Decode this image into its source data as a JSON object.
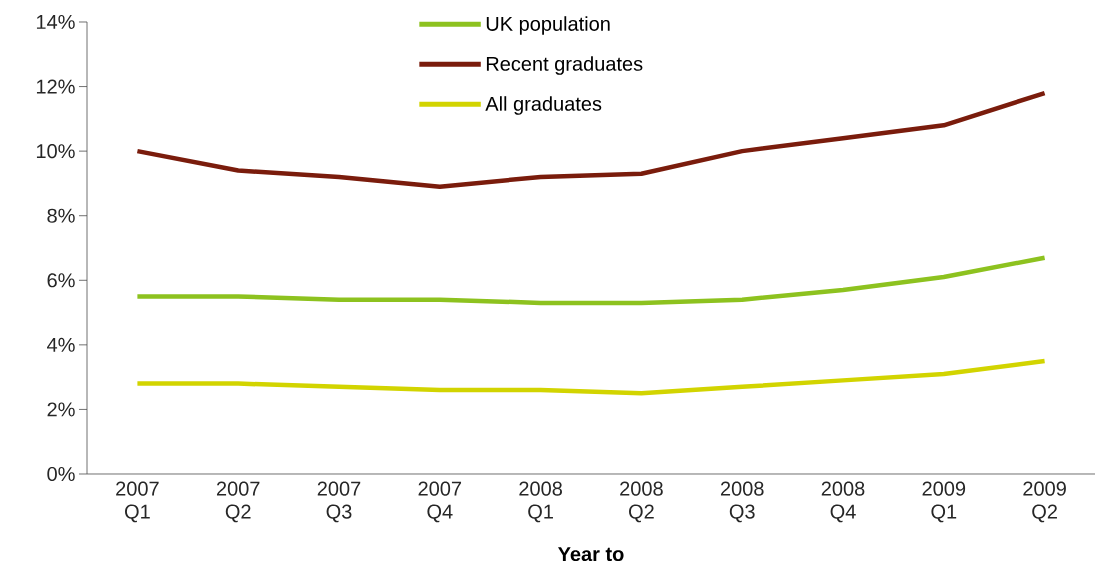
{
  "chart_data": {
    "type": "line",
    "xlabel": "Year to",
    "categories": [
      "2007 Q1",
      "2007 Q2",
      "2007 Q3",
      "2007 Q4",
      "2008 Q1",
      "2008 Q2",
      "2008 Q3",
      "2008 Q4",
      "2009 Q1",
      "2009 Q2"
    ],
    "series": [
      {
        "name": "UK population",
        "color": "#8dc21f",
        "values": [
          5.5,
          5.5,
          5.4,
          5.4,
          5.3,
          5.3,
          5.4,
          5.7,
          6.1,
          6.7
        ]
      },
      {
        "name": "Recent graduates",
        "color": "#7a1c0c",
        "values": [
          10.0,
          9.4,
          9.2,
          8.9,
          9.2,
          9.3,
          10.0,
          10.4,
          10.8,
          11.8
        ]
      },
      {
        "name": "All graduates",
        "color": "#d2d400",
        "values": [
          2.8,
          2.8,
          2.7,
          2.6,
          2.6,
          2.5,
          2.7,
          2.9,
          3.1,
          3.5
        ]
      }
    ],
    "ylim": [
      0,
      14
    ],
    "yticks": [
      {
        "value": 0,
        "label": "0%"
      },
      {
        "value": 2,
        "label": "2%"
      },
      {
        "value": 4,
        "label": "4%"
      },
      {
        "value": 6,
        "label": "6%"
      },
      {
        "value": 8,
        "label": "8%"
      },
      {
        "value": 10,
        "label": "10%"
      },
      {
        "value": 12,
        "label": "12%"
      },
      {
        "value": 14,
        "label": "14%"
      }
    ],
    "legend": "top",
    "grid": false,
    "marker": "none",
    "line_style": "solid"
  }
}
